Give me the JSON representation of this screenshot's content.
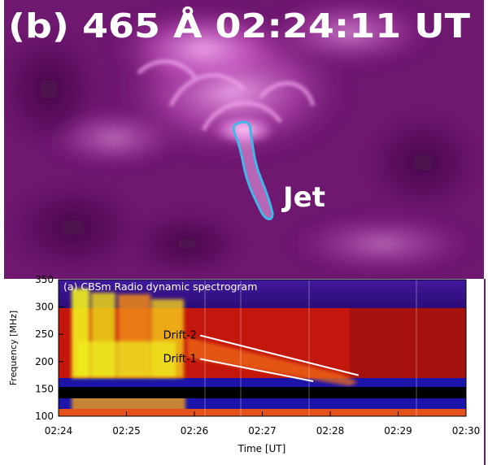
{
  "panel_b": {
    "title": "(b) 465 Å 02:24:11 UT",
    "jet_label": "Jet",
    "colors": {
      "background": "#7a1a78",
      "bright": "#f6b3f0",
      "contour": "#3fb7e8",
      "text": "#ffffff"
    }
  },
  "chart_data": {
    "type": "heatmap",
    "title": "(a) CBSm Radio dynamic spectrogram",
    "xlabel": "Time [UT]",
    "ylabel": "Frequency [MHz]",
    "x_ticks": [
      "02:24",
      "02:25",
      "02:26",
      "02:27",
      "02:28",
      "02:29",
      "02:30"
    ],
    "y_ticks": [
      100,
      150,
      200,
      250,
      300,
      350
    ],
    "xlim": [
      "02:24",
      "02:30"
    ],
    "ylim": [
      100,
      350
    ],
    "colors": {
      "low": "#1e14b4",
      "mid": "#d81b0b",
      "high": "#f2f21e"
    },
    "annotations": [
      {
        "label": "Drift-2",
        "t_start": "02:26:05",
        "f_start": 248,
        "t_end": "02:28:25",
        "f_end": 175
      },
      {
        "label": "Drift-1",
        "t_start": "02:26:05",
        "f_start": 205,
        "t_end": "02:27:45",
        "f_end": 164
      }
    ]
  }
}
